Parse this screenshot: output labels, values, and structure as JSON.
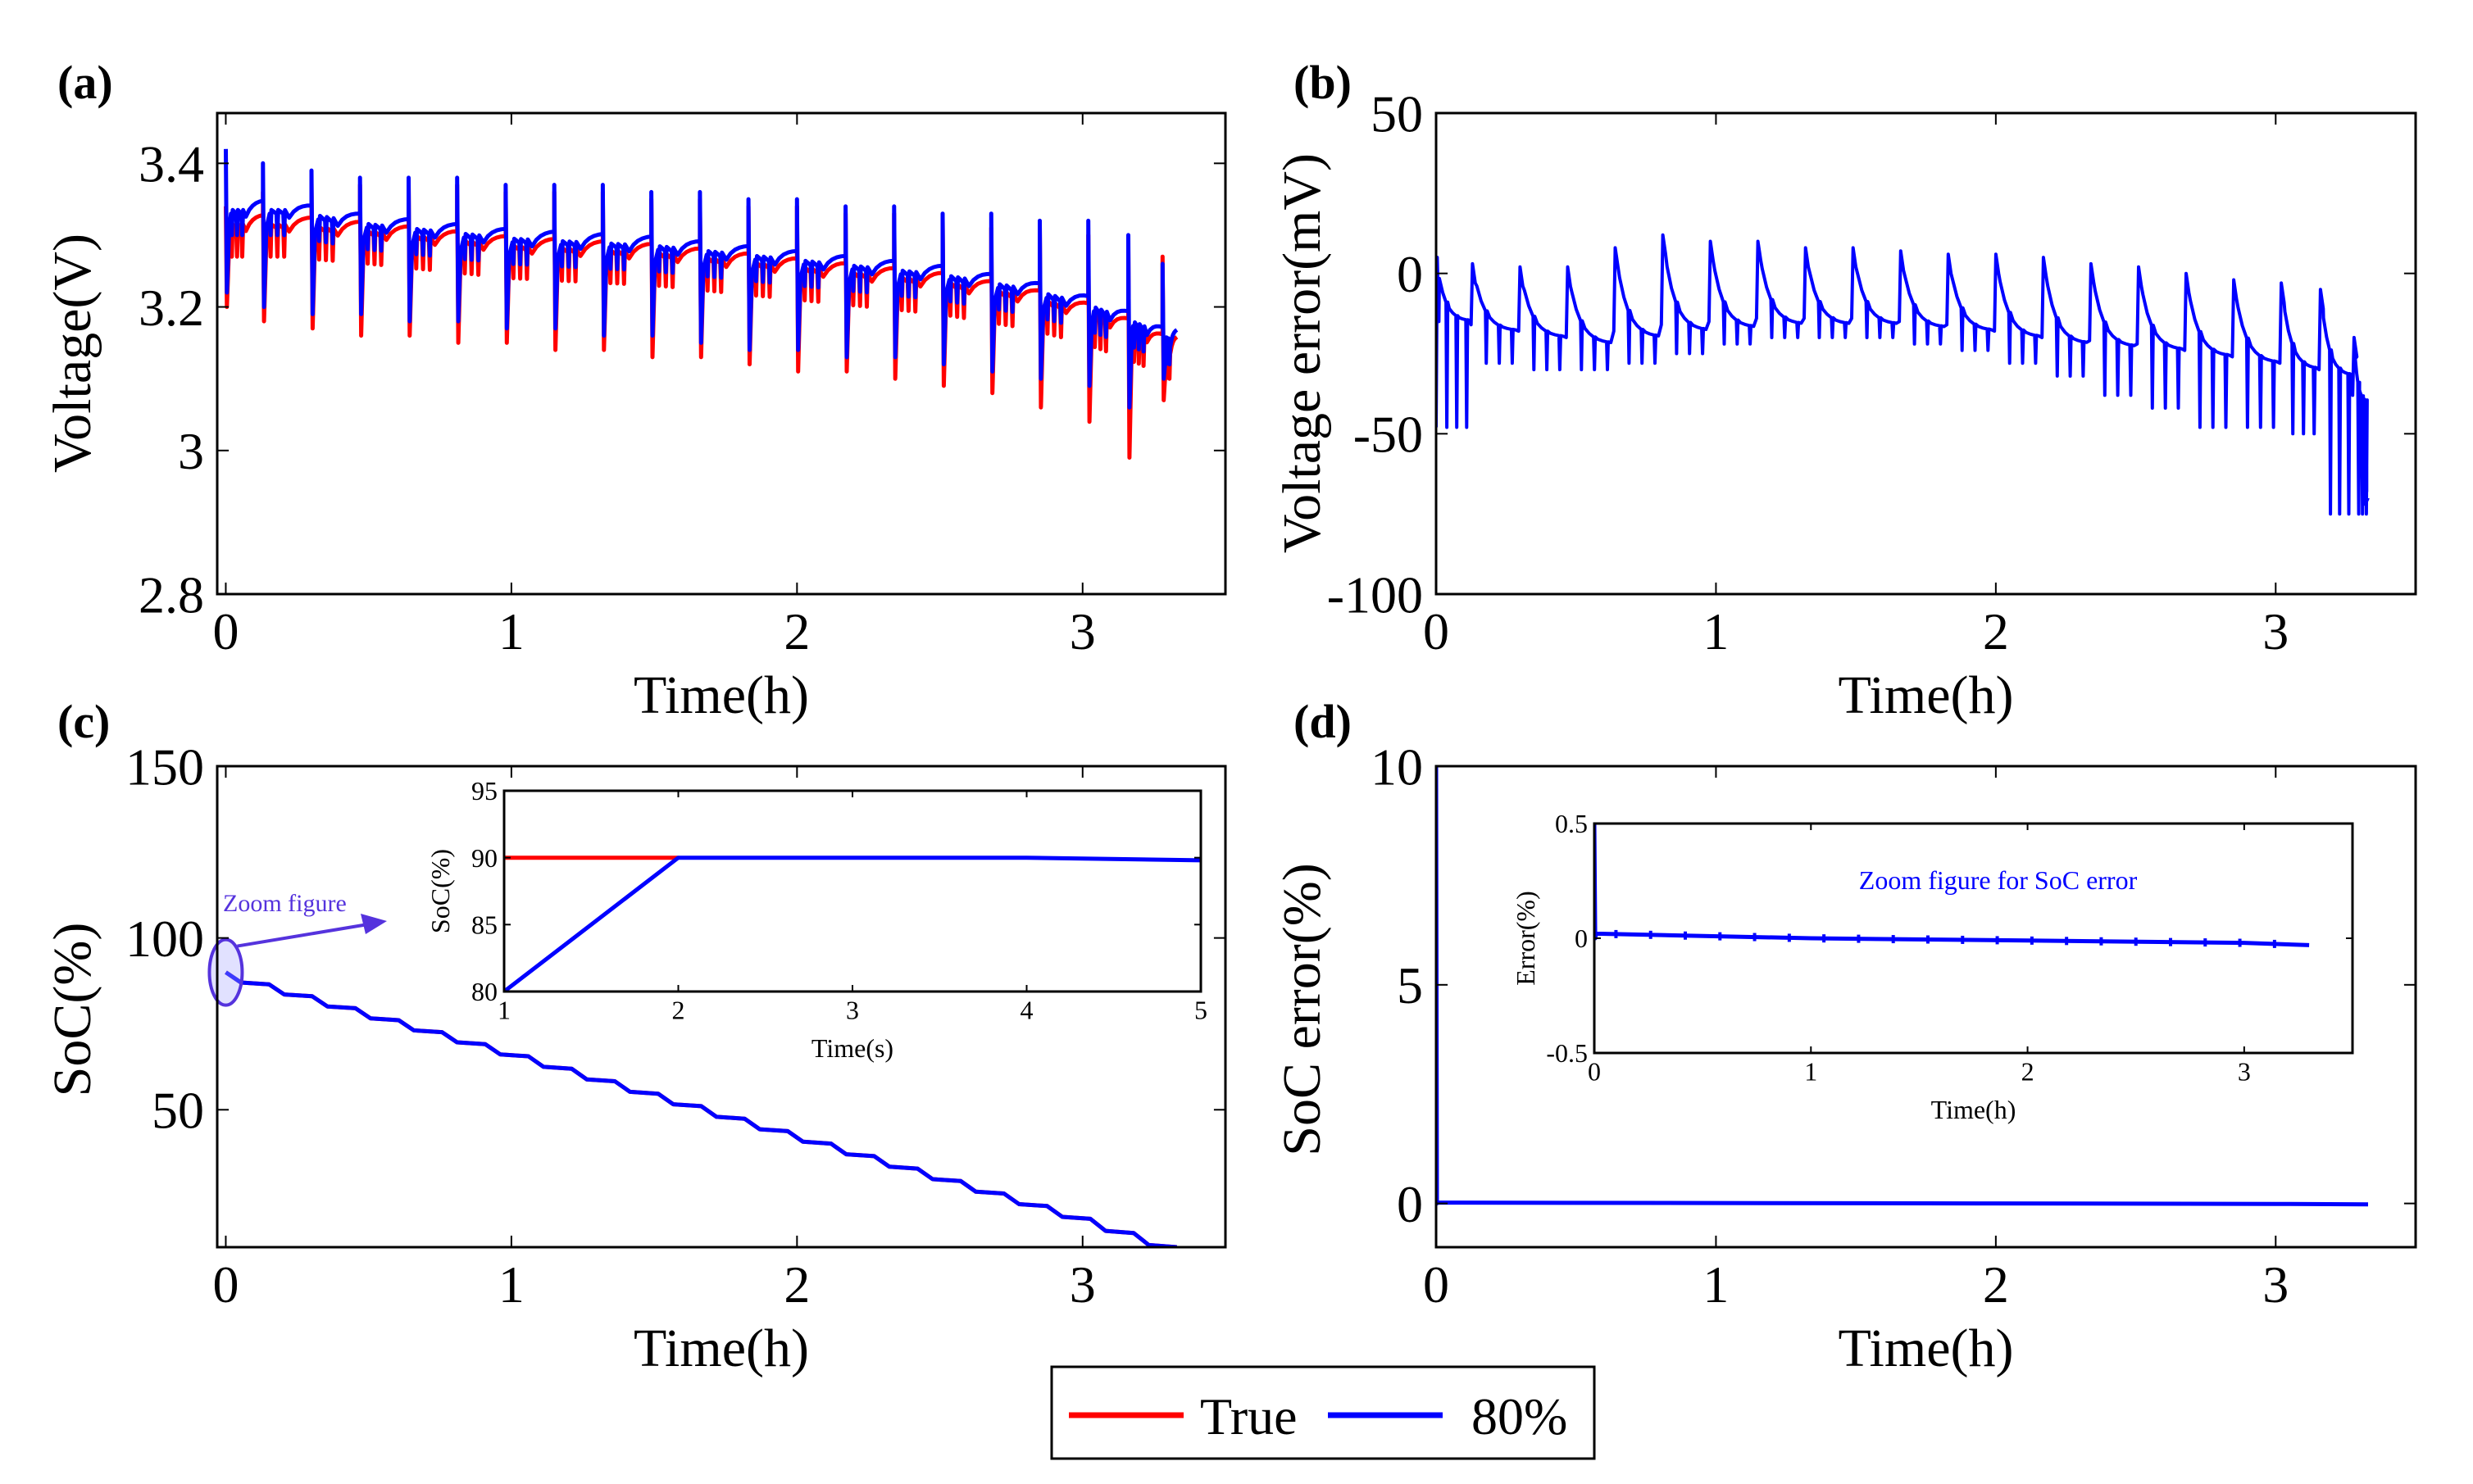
{
  "colors": {
    "true": "#ff0000",
    "estimate": "#0000ff",
    "annotation": "#5533dd",
    "axes": "#000000"
  },
  "legend": {
    "items": [
      {
        "label": "True",
        "color": "#ff0000"
      },
      {
        "label": "80%",
        "color": "#0000ff"
      }
    ]
  },
  "chart_data": [
    {
      "id": "a",
      "panel_label": "(a)",
      "type": "line",
      "xlabel": "Time(h)",
      "ylabel": "Voltage(V)",
      "xlim": [
        -0.03,
        3.5
      ],
      "ylim": [
        2.8,
        3.47
      ],
      "xticks": [
        0,
        1,
        2,
        3
      ],
      "xtick_labels": [
        "0",
        "1",
        "2",
        "3"
      ],
      "yticks": [
        2.8,
        3,
        3.2,
        3.4
      ],
      "ytick_labels": [
        "2.8",
        "3",
        "3.2",
        "3.4"
      ],
      "pulse_times": [
        0.0,
        0.13,
        0.3,
        0.47,
        0.64,
        0.81,
        0.98,
        1.15,
        1.32,
        1.49,
        1.66,
        1.83,
        2.0,
        2.17,
        2.34,
        2.51,
        2.68,
        2.85,
        3.02,
        3.16,
        3.28
      ],
      "series": [
        {
          "name": "True",
          "color": "#ff0000",
          "envelope_time": [
            0,
            0.2,
            0.5,
            1.0,
            1.5,
            2.0,
            2.5,
            2.8,
            3.0,
            3.2,
            3.3
          ],
          "envelope_v": [
            3.33,
            3.33,
            3.32,
            3.3,
            3.29,
            3.27,
            3.25,
            3.23,
            3.21,
            3.18,
            3.16
          ],
          "pulse_min_v": [
            3.2,
            3.18,
            3.17,
            3.16,
            3.16,
            3.15,
            3.15,
            3.14,
            3.14,
            3.13,
            3.13,
            3.12,
            3.11,
            3.11,
            3.1,
            3.09,
            3.08,
            3.06,
            3.04,
            2.99,
            3.07
          ],
          "pulse_max_v": [
            3.34,
            3.36,
            3.37,
            3.37,
            3.37,
            3.37,
            3.36,
            3.36,
            3.36,
            3.35,
            3.35,
            3.34,
            3.34,
            3.33,
            3.33,
            3.32,
            3.31,
            3.31,
            3.3,
            3.28,
            3.27
          ]
        },
        {
          "name": "80%",
          "color": "#0000ff",
          "envelope_time": [
            0,
            0.2,
            0.5,
            1.0,
            1.5,
            2.0,
            2.5,
            2.8,
            3.0,
            3.2,
            3.3
          ],
          "envelope_v": [
            3.35,
            3.35,
            3.33,
            3.31,
            3.3,
            3.28,
            3.26,
            3.24,
            3.22,
            3.19,
            3.17
          ],
          "pulse_min_v": [
            3.22,
            3.2,
            3.19,
            3.19,
            3.18,
            3.18,
            3.17,
            3.17,
            3.16,
            3.16,
            3.15,
            3.14,
            3.14,
            3.13,
            3.13,
            3.12,
            3.11,
            3.1,
            3.09,
            3.06,
            3.1
          ],
          "pulse_max_v": [
            3.42,
            3.4,
            3.39,
            3.38,
            3.38,
            3.38,
            3.37,
            3.37,
            3.37,
            3.36,
            3.36,
            3.35,
            3.35,
            3.34,
            3.34,
            3.33,
            3.33,
            3.32,
            3.32,
            3.3,
            3.26
          ]
        }
      ]
    },
    {
      "id": "b",
      "panel_label": "(b)",
      "type": "line",
      "xlabel": "Time(h)",
      "ylabel": "Voltage error(mV)",
      "xlim": [
        0,
        3.5
      ],
      "ylim": [
        -100,
        50
      ],
      "xticks": [
        0,
        1,
        2,
        3
      ],
      "xtick_labels": [
        "0",
        "1",
        "2",
        "3"
      ],
      "yticks": [
        -100,
        -50,
        0,
        50
      ],
      "ytick_labels": [
        "-100",
        "-50",
        "0",
        "50"
      ],
      "series": [
        {
          "name": "80%",
          "color": "#0000ff",
          "pulse_times": [
            0.0,
            0.13,
            0.3,
            0.47,
            0.64,
            0.81,
            0.98,
            1.15,
            1.32,
            1.49,
            1.66,
            1.83,
            2.0,
            2.17,
            2.34,
            2.51,
            2.68,
            2.85,
            3.02,
            3.16,
            3.28
          ],
          "peak_mv": [
            5,
            3,
            2,
            2,
            8,
            12,
            10,
            10,
            8,
            8,
            7,
            6,
            6,
            5,
            3,
            2,
            0,
            -2,
            -3,
            -5,
            -20
          ],
          "base_mv": [
            -15,
            -18,
            -20,
            -22,
            -20,
            -18,
            -17,
            -16,
            -16,
            -16,
            -17,
            -18,
            -20,
            -22,
            -23,
            -24,
            -26,
            -28,
            -30,
            -32,
            -40
          ],
          "min_mv": [
            -48,
            -28,
            -30,
            -30,
            -28,
            -25,
            -22,
            -20,
            -20,
            -20,
            -22,
            -24,
            -28,
            -32,
            -38,
            -42,
            -48,
            -48,
            -50,
            -75,
            -75
          ],
          "end_mv": -70
        }
      ]
    },
    {
      "id": "c",
      "panel_label": "(c)",
      "type": "line",
      "xlabel": "Time(h)",
      "ylabel": "SoC(%)",
      "xlim": [
        -0.03,
        3.5
      ],
      "ylim": [
        10,
        150
      ],
      "xticks": [
        0,
        1,
        2,
        3
      ],
      "xtick_labels": [
        "0",
        "1",
        "2",
        "3"
      ],
      "yticks": [
        50,
        100,
        150
      ],
      "ytick_labels": [
        "50",
        "100",
        "150"
      ],
      "series": [
        {
          "name": "True",
          "color": "#ff0000",
          "x": [
            0,
            1,
            2,
            3,
            3.33
          ],
          "y": [
            90,
            67,
            43,
            19,
            10
          ]
        },
        {
          "name": "80%",
          "color": "#0000ff",
          "x": [
            0,
            1,
            2,
            3,
            3.33
          ],
          "y": [
            90,
            67,
            43,
            19,
            10
          ]
        }
      ],
      "annotation": "Zoom figure",
      "inset": {
        "xlabel": "Time(s)",
        "ylabel": "SoC(%)",
        "xlim": [
          1,
          5
        ],
        "ylim": [
          80,
          95
        ],
        "xticks": [
          1,
          2,
          3,
          4,
          5
        ],
        "xtick_labels": [
          "1",
          "2",
          "3",
          "4",
          "5"
        ],
        "yticks": [
          80,
          85,
          90,
          95
        ],
        "ytick_labels": [
          "80",
          "85",
          "90",
          "95"
        ],
        "series": [
          {
            "name": "True",
            "color": "#ff0000",
            "x": [
              1,
              2
            ],
            "y": [
              90,
              90
            ]
          },
          {
            "name": "80%",
            "color": "#0000ff",
            "x": [
              1,
              2,
              3,
              4,
              5
            ],
            "y": [
              80,
              90,
              90,
              90,
              89.8
            ]
          }
        ]
      }
    },
    {
      "id": "d",
      "panel_label": "(d)",
      "type": "line",
      "xlabel": "Time(h)",
      "ylabel": "SoC error(%)",
      "xlim": [
        0,
        3.5
      ],
      "ylim": [
        -1,
        10
      ],
      "xticks": [
        0,
        1,
        2,
        3
      ],
      "xtick_labels": [
        "0",
        "1",
        "2",
        "3"
      ],
      "yticks": [
        0,
        5,
        10
      ],
      "ytick_labels": [
        "0",
        "5",
        "10"
      ],
      "series": [
        {
          "name": "80%",
          "color": "#0000ff",
          "x": [
            0,
            0.003,
            0.006,
            1.0,
            2.0,
            3.0,
            3.33
          ],
          "y": [
            10,
            0,
            0.02,
            0.01,
            0,
            -0.01,
            -0.02
          ]
        }
      ],
      "inset": {
        "title": "Zoom figure for SoC error",
        "xlabel": "Time(h)",
        "ylabel": "Error(%)",
        "xlim": [
          0,
          3.5
        ],
        "ylim": [
          -0.5,
          0.5
        ],
        "xticks": [
          0,
          1,
          2,
          3
        ],
        "xtick_labels": [
          "0",
          "1",
          "2",
          "3"
        ],
        "yticks": [
          -0.5,
          0,
          0.5
        ],
        "ytick_labels": [
          "-0.5",
          "0",
          "0.5"
        ],
        "series": [
          {
            "name": "80%",
            "color": "#0000ff",
            "x": [
              0,
              0.004,
              0.008,
              1.0,
              2.0,
              3.0,
              3.3
            ],
            "y": [
              0.5,
              0.0,
              0.02,
              0.0,
              -0.01,
              -0.02,
              -0.03
            ]
          }
        ]
      }
    }
  ]
}
